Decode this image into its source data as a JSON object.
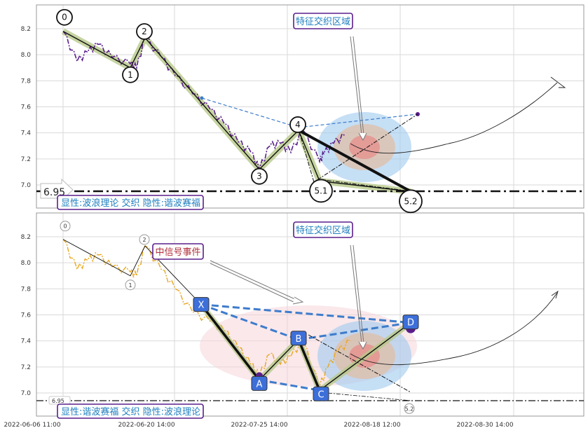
{
  "chart_data": [
    {
      "type": "line",
      "panel": "top",
      "title": "",
      "xlabel": "",
      "ylabel": "",
      "ylim": [
        6.9,
        8.35
      ],
      "yticks": [
        7.0,
        7.2,
        7.4,
        7.6,
        7.8,
        8.0,
        8.2
      ],
      "ytick_labels": [
        "7.0",
        "7.2",
        "7.4",
        "7.6",
        "7.8",
        "8.0",
        "8.2"
      ],
      "grid": true,
      "price_series": [
        {
          "x": "2022-06-06 11:00",
          "y": 8.18
        },
        {
          "x": "2022-06-08",
          "y": 7.95
        },
        {
          "x": "2022-06-10",
          "y": 8.02
        },
        {
          "x": "2022-06-12",
          "y": 8.08
        },
        {
          "x": "2022-06-14",
          "y": 7.98
        },
        {
          "x": "2022-06-16",
          "y": 7.93
        },
        {
          "x": "2022-06-18",
          "y": 7.9
        },
        {
          "x": "2022-06-20 14:00",
          "y": 8.13
        },
        {
          "x": "2022-06-24",
          "y": 7.98
        },
        {
          "x": "2022-06-28",
          "y": 7.84
        },
        {
          "x": "2022-07-02",
          "y": 7.7
        },
        {
          "x": "2022-07-06",
          "y": 7.58
        },
        {
          "x": "2022-07-10",
          "y": 7.47
        },
        {
          "x": "2022-07-14",
          "y": 7.33
        },
        {
          "x": "2022-07-18",
          "y": 7.25
        },
        {
          "x": "2022-07-20",
          "y": 7.12
        },
        {
          "x": "2022-07-23",
          "y": 7.3
        },
        {
          "x": "2022-07-27",
          "y": 7.32
        },
        {
          "x": "2022-07-31",
          "y": 7.25
        },
        {
          "x": "2022-08-03",
          "y": 7.42
        },
        {
          "x": "2022-08-06",
          "y": 7.18
        },
        {
          "x": "2022-08-08",
          "y": 7.24
        },
        {
          "x": "2022-08-11",
          "y": 7.32
        },
        {
          "x": "2022-08-14",
          "y": 7.38
        }
      ],
      "wave_points": [
        {
          "label": "0",
          "x": "2022-06-06 11:00",
          "y": 8.18
        },
        {
          "label": "1",
          "x": "2022-06-16",
          "y": 7.9
        },
        {
          "label": "2",
          "x": "2022-06-20 14:00",
          "y": 8.13
        },
        {
          "label": "3",
          "x": "2022-07-20",
          "y": 7.12
        },
        {
          "label": "4",
          "x": "2022-08-01",
          "y": 7.42
        },
        {
          "label": "5.1",
          "x": "2022-08-06",
          "y": 7.03
        },
        {
          "label": "5.2",
          "x": "2022-08-25",
          "y": 6.95
        }
      ],
      "support_level": {
        "value": 6.95,
        "label": "6.95"
      },
      "annotations": [
        {
          "text": "特征交织区域",
          "color": "#1f5fbf"
        }
      ],
      "legend_text": "显性:波浪理论 交织 隐性:谐波赛福"
    },
    {
      "type": "line",
      "panel": "bottom",
      "title": "",
      "xlabel": "",
      "ylabel": "",
      "ylim": [
        6.9,
        8.35
      ],
      "yticks": [
        7.0,
        7.2,
        7.4,
        7.6,
        7.8,
        8.0,
        8.2
      ],
      "ytick_labels": [
        "7.0",
        "7.2",
        "7.4",
        "7.6",
        "7.8",
        "8.0",
        "8.2"
      ],
      "xtick_labels": [
        "2022-06-06 11:00",
        "2022-06-20 14:00",
        "2022-07-25 14:00",
        "2022-08-18 12:00",
        "2022-08-30 14:00"
      ],
      "grid": true,
      "price_series": [
        {
          "x": "2022-06-06 11:00",
          "y": 8.18
        },
        {
          "x": "2022-06-08",
          "y": 7.95
        },
        {
          "x": "2022-06-10",
          "y": 8.02
        },
        {
          "x": "2022-06-12",
          "y": 8.06
        },
        {
          "x": "2022-06-14",
          "y": 7.97
        },
        {
          "x": "2022-06-16",
          "y": 7.93
        },
        {
          "x": "2022-06-18",
          "y": 7.9
        },
        {
          "x": "2022-06-20 14:00",
          "y": 8.13
        },
        {
          "x": "2022-06-24",
          "y": 7.95
        },
        {
          "x": "2022-06-28",
          "y": 7.8
        },
        {
          "x": "2022-07-02",
          "y": 7.62
        },
        {
          "x": "2022-07-06",
          "y": 7.55
        },
        {
          "x": "2022-07-10",
          "y": 7.48
        },
        {
          "x": "2022-07-14",
          "y": 7.35
        },
        {
          "x": "2022-07-18",
          "y": 7.22
        },
        {
          "x": "2022-07-20",
          "y": 7.13
        },
        {
          "x": "2022-07-23",
          "y": 7.3
        },
        {
          "x": "2022-07-27",
          "y": 7.22
        },
        {
          "x": "2022-07-31",
          "y": 7.28
        },
        {
          "x": "2022-08-03",
          "y": 7.4
        },
        {
          "x": "2022-08-06",
          "y": 7.05
        },
        {
          "x": "2022-08-09",
          "y": 7.2
        },
        {
          "x": "2022-08-12",
          "y": 7.32
        },
        {
          "x": "2022-08-15",
          "y": 7.4
        }
      ],
      "wave_points": [
        {
          "label": "0",
          "x": "2022-06-06 11:00",
          "y": 8.18
        },
        {
          "label": "1",
          "x": "2022-06-16",
          "y": 7.9
        },
        {
          "label": "2",
          "x": "2022-06-20 14:00",
          "y": 8.13
        },
        {
          "label": "5.2",
          "x": "2022-08-25",
          "y": 6.95
        }
      ],
      "harmonic_points": [
        {
          "label": "X",
          "x": "2022-07-04",
          "y": 7.68
        },
        {
          "label": "A",
          "x": "2022-07-20",
          "y": 7.1
        },
        {
          "label": "B",
          "x": "2022-08-01",
          "y": 7.41
        },
        {
          "label": "C",
          "x": "2022-08-06",
          "y": 7.02
        },
        {
          "label": "D",
          "x": "2022-08-25",
          "y": 7.54
        }
      ],
      "support_level": {
        "value": 6.95,
        "label": "6.95"
      },
      "annotations": [
        {
          "text": "特征交织区域",
          "color": "#1f5fbf"
        },
        {
          "text": "中信号事件",
          "color": "#b0303a"
        }
      ],
      "legend_text": "显性:谐波赛福 交织 隐性:波浪理论"
    }
  ]
}
